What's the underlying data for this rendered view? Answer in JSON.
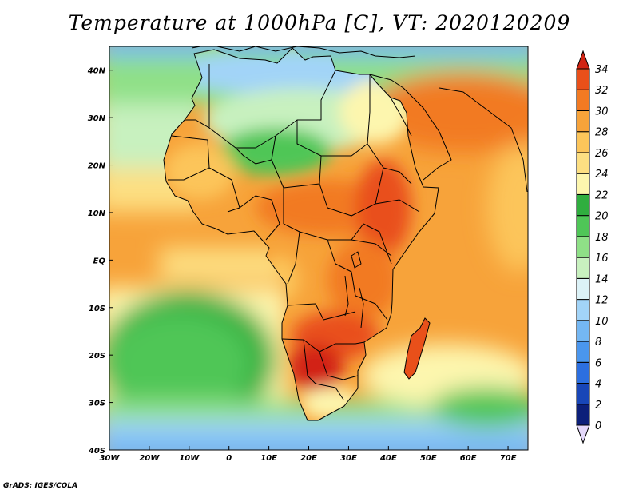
{
  "title": "Temperature at 1000hPa [C], VT: 2020120209",
  "credit": "GrADS: IGES/COLA",
  "map": {
    "lon_range": [
      -30,
      75
    ],
    "lat_range": [
      -40,
      45
    ],
    "lon_ticks": [
      {
        "value": -30,
        "label": "30W"
      },
      {
        "value": -20,
        "label": "20W"
      },
      {
        "value": -10,
        "label": "10W"
      },
      {
        "value": 0,
        "label": "0"
      },
      {
        "value": 10,
        "label": "10E"
      },
      {
        "value": 20,
        "label": "20E"
      },
      {
        "value": 30,
        "label": "30E"
      },
      {
        "value": 40,
        "label": "40E"
      },
      {
        "value": 50,
        "label": "50E"
      },
      {
        "value": 60,
        "label": "60E"
      },
      {
        "value": 70,
        "label": "70E"
      }
    ],
    "lat_ticks": [
      {
        "value": 40,
        "label": "40N"
      },
      {
        "value": 30,
        "label": "30N"
      },
      {
        "value": 20,
        "label": "20N"
      },
      {
        "value": 10,
        "label": "10N"
      },
      {
        "value": 0,
        "label": "EQ"
      },
      {
        "value": -10,
        "label": "10S"
      },
      {
        "value": -20,
        "label": "20S"
      },
      {
        "value": -30,
        "label": "30S"
      },
      {
        "value": -40,
        "label": "40S"
      }
    ]
  },
  "colorbar": {
    "levels": [
      0,
      2,
      4,
      6,
      8,
      10,
      12,
      14,
      16,
      18,
      20,
      22,
      24,
      26,
      28,
      30,
      32,
      34
    ],
    "colors": [
      "#0c1f7a",
      "#1846b8",
      "#2c6fe0",
      "#4a96ee",
      "#74b7f3",
      "#a2d4f8",
      "#dcf2f7",
      "#c8f1bf",
      "#8fe087",
      "#4fc657",
      "#30ae3f",
      "#fdf6ae",
      "#fddf82",
      "#fcc55a",
      "#f7a33a",
      "#f27a22",
      "#e9501a",
      "#d22413"
    ],
    "under_color": "#e4d8fb",
    "over_color": "#d22413"
  },
  "colors": {
    "background": "#ffffff",
    "boundary": "#000000"
  }
}
